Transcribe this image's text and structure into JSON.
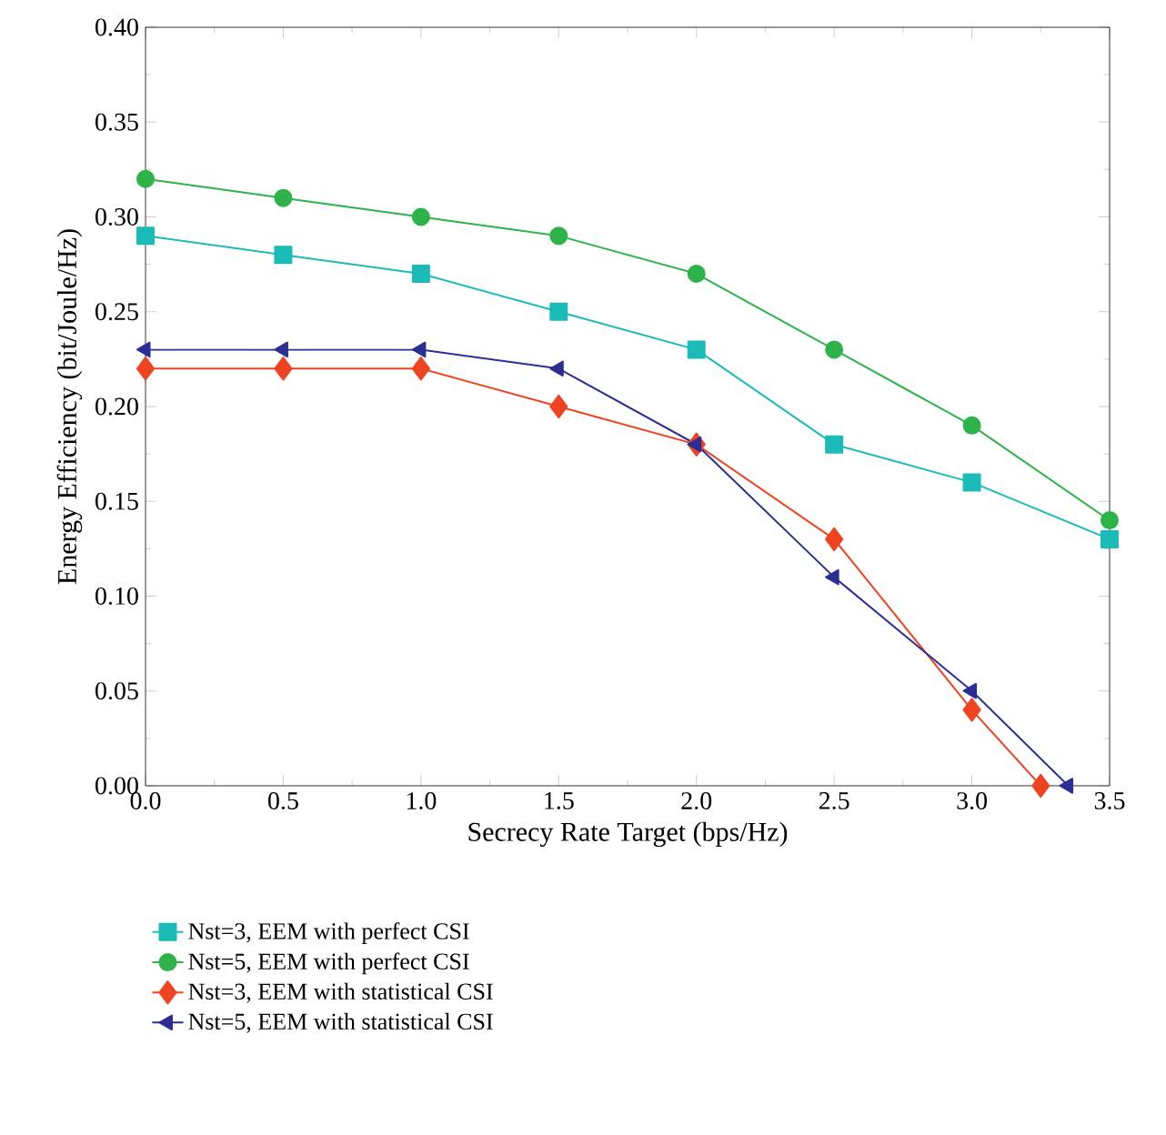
{
  "chart_data": {
    "type": "line",
    "xlabel": "Secrecy Rate Target (bps/Hz)",
    "ylabel": "Energy Efficiency (bit/Joule/Hz)",
    "x": [
      0.0,
      0.5,
      1.0,
      1.5,
      2.0,
      2.5,
      3.0,
      3.5
    ],
    "xlim": [
      0,
      3.5
    ],
    "xticks": [
      {
        "value": 0,
        "label": "0.0"
      },
      0.5,
      {
        "value": 1,
        "label": "1.0"
      },
      1.5,
      {
        "value": 2,
        "label": "2.0"
      },
      2.5,
      {
        "value": 3,
        "label": "3.0"
      },
      3.5
    ],
    "ylim": [
      0,
      0.4
    ],
    "yticks": [
      {
        "value": 0,
        "label": "0.00"
      },
      0.05,
      {
        "value": 0.1,
        "label": "0.10"
      },
      0.15,
      {
        "value": 0.2,
        "label": "0.20"
      },
      0.25,
      {
        "value": 0.3,
        "label": "0.30"
      },
      0.35,
      {
        "value": 0.4,
        "label": "0.40"
      }
    ],
    "legend": "bottom",
    "grid": false,
    "line_style": "solid",
    "series": [
      {
        "name": "Nst=3, EEM with perfect CSI",
        "color": "#1bbcb8",
        "marker": "square",
        "values": [
          0.29,
          0.28,
          0.27,
          0.25,
          0.23,
          0.18,
          0.16,
          0.13
        ]
      },
      {
        "name": "Nst=5, EEM with perfect CSI",
        "color": "#2db34a",
        "marker": "circle",
        "values": [
          0.32,
          0.31,
          0.3,
          0.29,
          0.27,
          0.23,
          0.19,
          0.14
        ]
      },
      {
        "name": "Nst=3, EEM with statistical CSI",
        "color": "#ee4422",
        "marker": "diamond",
        "x": [
          0.0,
          0.5,
          1.0,
          1.5,
          2.0,
          2.5,
          3.0,
          3.25
        ],
        "values": [
          0.22,
          0.22,
          0.22,
          0.2,
          0.18,
          0.13,
          0.04,
          0.0
        ]
      },
      {
        "name": "Nst=5, EEM with statistical CSI",
        "color": "#2b2f93",
        "marker": "triangle",
        "x": [
          0.0,
          0.5,
          1.0,
          1.5,
          2.0,
          2.5,
          3.0,
          3.35
        ],
        "values": [
          0.23,
          0.23,
          0.23,
          0.22,
          0.18,
          0.11,
          0.05,
          0.0
        ]
      }
    ]
  }
}
